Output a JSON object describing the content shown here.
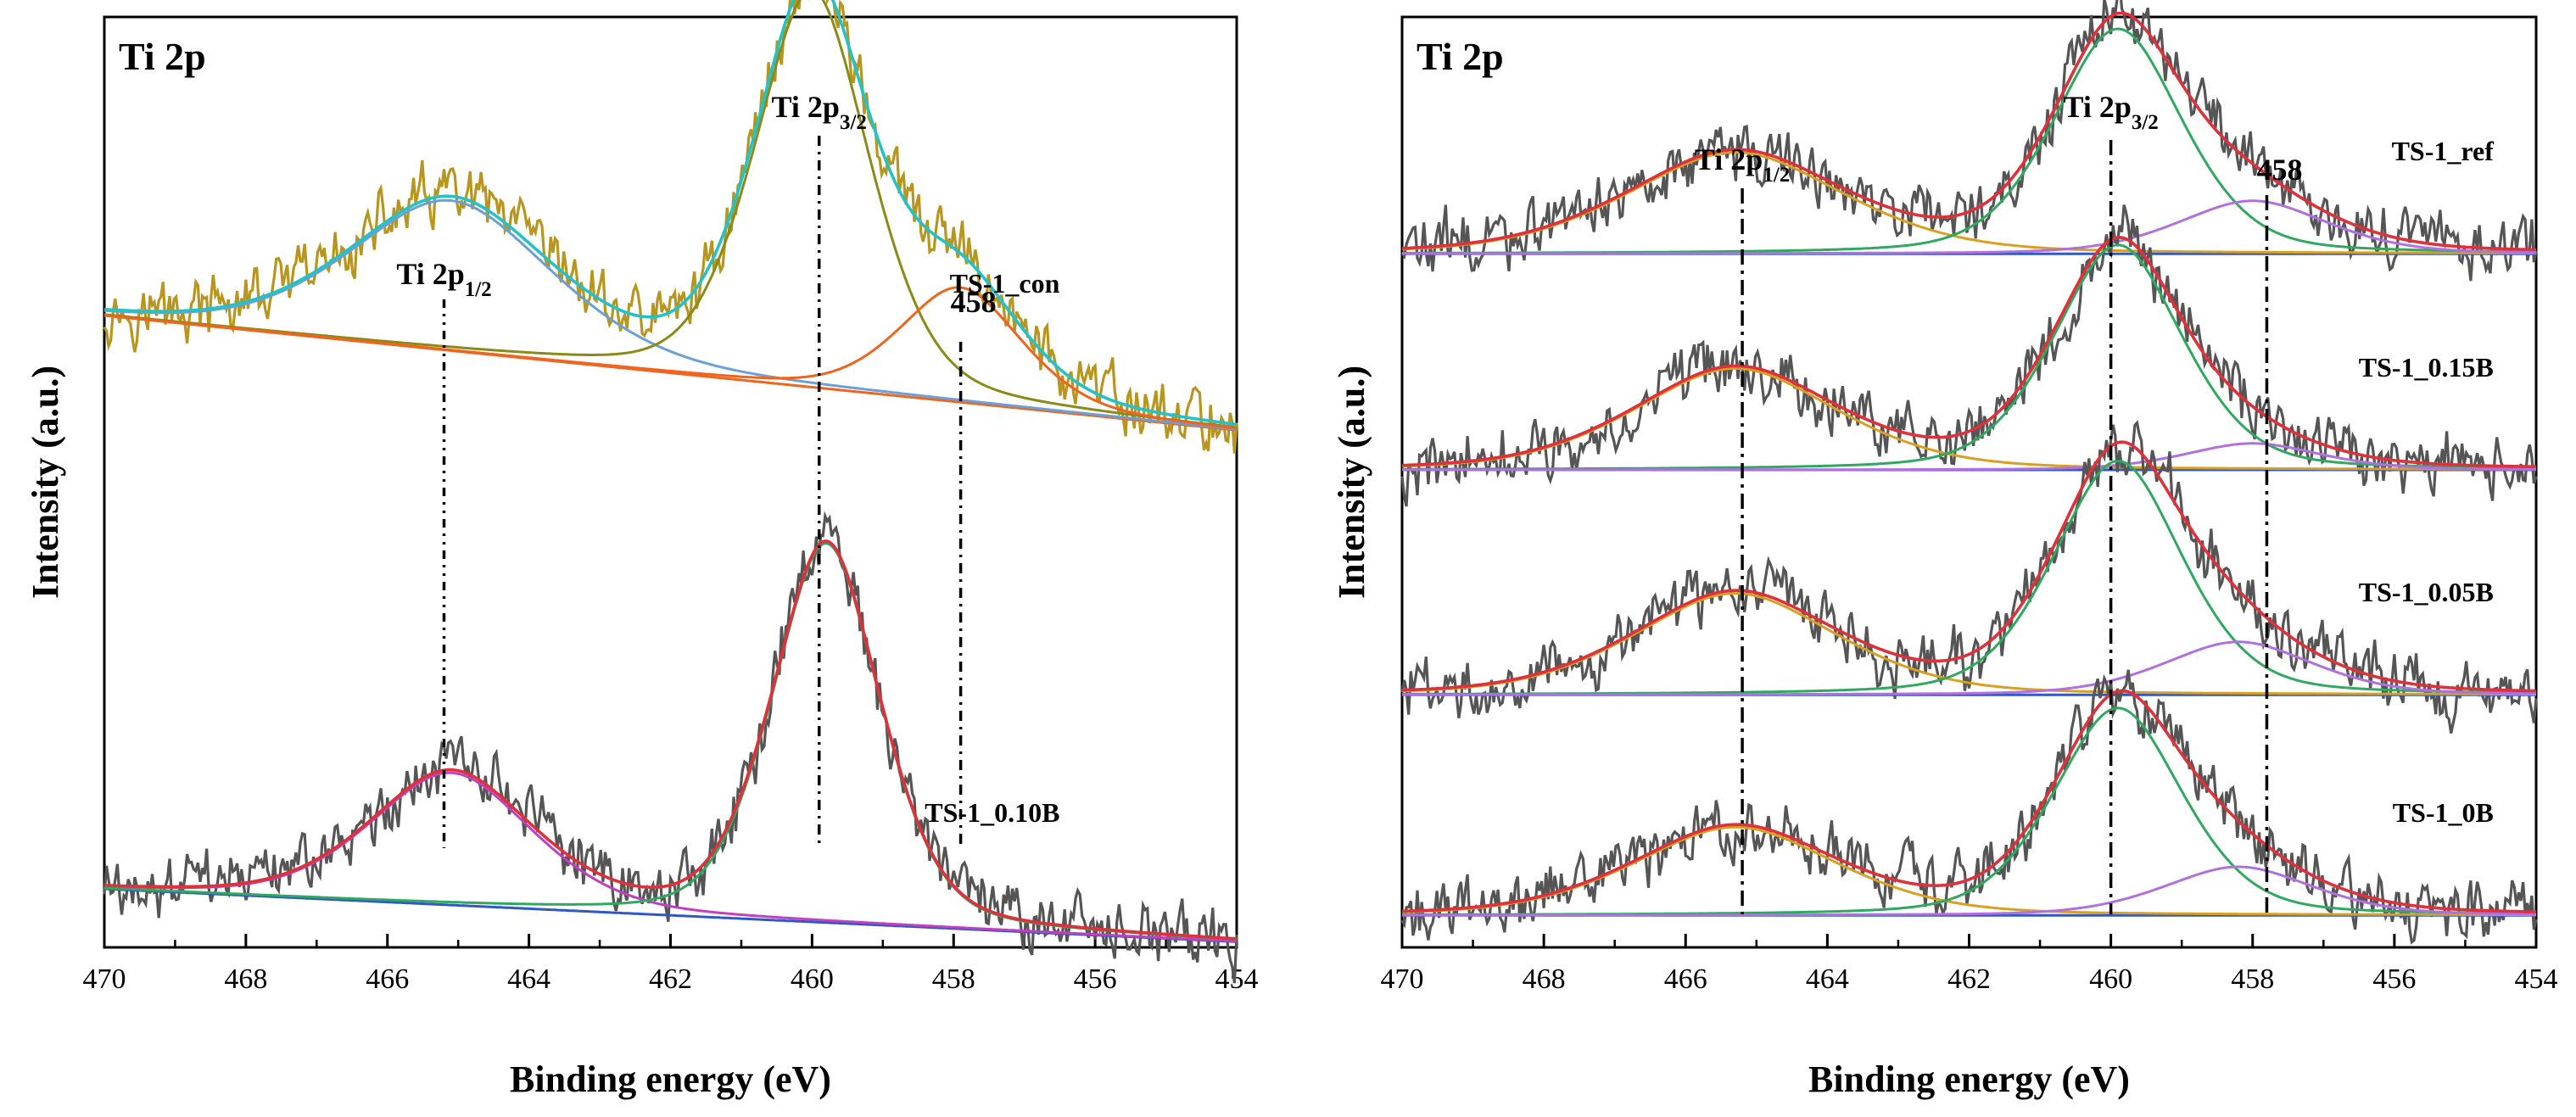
{
  "chart_data": [
    {
      "type": "line",
      "title": "Ti 2p",
      "xlabel": "Binding energy (eV)",
      "ylabel": "Intensity (a.u.)",
      "xlim": [
        470,
        454
      ],
      "x_reversed": true,
      "xticks": [
        "470",
        "468",
        "466",
        "464",
        "462",
        "460",
        "458",
        "456",
        "454"
      ],
      "grid": false,
      "peak_annotations": [
        {
          "id": "p12",
          "text": "Ti 2p",
          "sub": "1/2",
          "energy": 465.2
        },
        {
          "id": "p32",
          "text": "Ti 2p",
          "sub": "3/2",
          "energy": 459.9
        },
        {
          "id": "p458",
          "text": "458",
          "sub": "",
          "energy": 457.9
        }
      ],
      "series": [
        {
          "name": "TS-1_con",
          "offset": 0.62,
          "raw_color": "#b8961e",
          "envelope_color": "#22c2c8",
          "baseline": {
            "start": 0.08,
            "end": -0.05,
            "color": "#f0641e"
          },
          "components": [
            {
              "center": 465.1,
              "height": 0.17,
              "width": 1.5,
              "color": "#6a9fd8",
              "label": "Ti 2p1/2"
            },
            {
              "center": 460.0,
              "height": 0.45,
              "width": 0.85,
              "color": "#8a8a16",
              "label": "Ti 2p3/2"
            },
            {
              "center": 457.9,
              "height": 0.13,
              "width": 0.9,
              "color": "#f0641e",
              "label": "458"
            }
          ]
        },
        {
          "name": "TS-1_0.10B",
          "offset": 0.02,
          "raw_color": "#555555",
          "envelope_color": "#e0303a",
          "baseline": {
            "start": 0.03,
            "end": -0.03,
            "color": "#2f57c8"
          },
          "components": [
            {
              "center": 465.1,
              "height": 0.15,
              "width": 1.2,
              "color": "#c040c0",
              "label": "Ti 2p1/2"
            },
            {
              "center": 459.8,
              "height": 0.43,
              "width": 0.8,
              "color": "#2fa860",
              "label": "Ti 2p3/2"
            }
          ]
        }
      ]
    },
    {
      "type": "line",
      "title": "Ti 2p",
      "xlabel": "Binding energy (eV)",
      "ylabel": "Intensity (a.u.)",
      "xlim": [
        470,
        454
      ],
      "x_reversed": true,
      "xticks": [
        "470",
        "468",
        "466",
        "464",
        "462",
        "460",
        "458",
        "456",
        "454"
      ],
      "grid": false,
      "peak_annotations": [
        {
          "id": "p12",
          "text": "Ti 2p",
          "sub": "1/2",
          "energy": 465.2
        },
        {
          "id": "p32",
          "text": "Ti 2p",
          "sub": "3/2",
          "energy": 460.0
        },
        {
          "id": "p458",
          "text": "458",
          "sub": "",
          "energy": 457.8
        }
      ],
      "series": [
        {
          "name": "TS-1_ref",
          "offset": 0.77,
          "raw_color": "#555555",
          "envelope_color": "#e0303a",
          "baseline": {
            "start": 0.0,
            "end": 0.0,
            "color": "#2f57c8"
          },
          "components": [
            {
              "center": 465.3,
              "height": 0.115,
              "width": 1.6,
              "color": "#d9a020",
              "label": "Ti 2p1/2"
            },
            {
              "center": 459.9,
              "height": 0.255,
              "width": 0.95,
              "color": "#2fa860",
              "label": "Ti 2p3/2"
            },
            {
              "center": 458.0,
              "height": 0.06,
              "width": 1.1,
              "color": "#b070e0",
              "label": "458"
            }
          ]
        },
        {
          "name": "TS-1_0.15B",
          "offset": 0.525,
          "raw_color": "#555555",
          "envelope_color": "#e0303a",
          "baseline": {
            "start": 0.0,
            "end": 0.0,
            "color": "#2f57c8"
          },
          "components": [
            {
              "center": 465.3,
              "height": 0.115,
              "width": 1.5,
              "color": "#d9a020",
              "label": "Ti 2p1/2"
            },
            {
              "center": 459.9,
              "height": 0.255,
              "width": 0.95,
              "color": "#2fa860",
              "label": "Ti 2p3/2"
            },
            {
              "center": 458.0,
              "height": 0.03,
              "width": 1.0,
              "color": "#b070e0",
              "label": "458"
            }
          ]
        },
        {
          "name": "TS-1_0.05B",
          "offset": 0.27,
          "raw_color": "#555555",
          "envelope_color": "#e0303a",
          "baseline": {
            "start": 0.0,
            "end": 0.0,
            "color": "#2f57c8"
          },
          "components": [
            {
              "center": 465.3,
              "height": 0.115,
              "width": 1.5,
              "color": "#d9a020",
              "label": "Ti 2p1/2"
            },
            {
              "center": 459.9,
              "height": 0.265,
              "width": 0.95,
              "color": "#2fa860",
              "label": "Ti 2p3/2"
            },
            {
              "center": 458.2,
              "height": 0.06,
              "width": 1.1,
              "color": "#b070e0",
              "label": "458"
            }
          ]
        },
        {
          "name": "TS-1_0B",
          "offset": 0.02,
          "raw_color": "#555555",
          "envelope_color": "#e0303a",
          "baseline": {
            "start": 0.0,
            "end": 0.0,
            "color": "#2f57c8"
          },
          "components": [
            {
              "center": 465.3,
              "height": 0.1,
              "width": 1.5,
              "color": "#d9a020",
              "label": "Ti 2p1/2"
            },
            {
              "center": 459.9,
              "height": 0.235,
              "width": 0.95,
              "color": "#2fa860",
              "label": "Ti 2p3/2"
            },
            {
              "center": 458.2,
              "height": 0.055,
              "width": 1.1,
              "color": "#b070e0",
              "label": "458"
            }
          ]
        }
      ]
    }
  ]
}
